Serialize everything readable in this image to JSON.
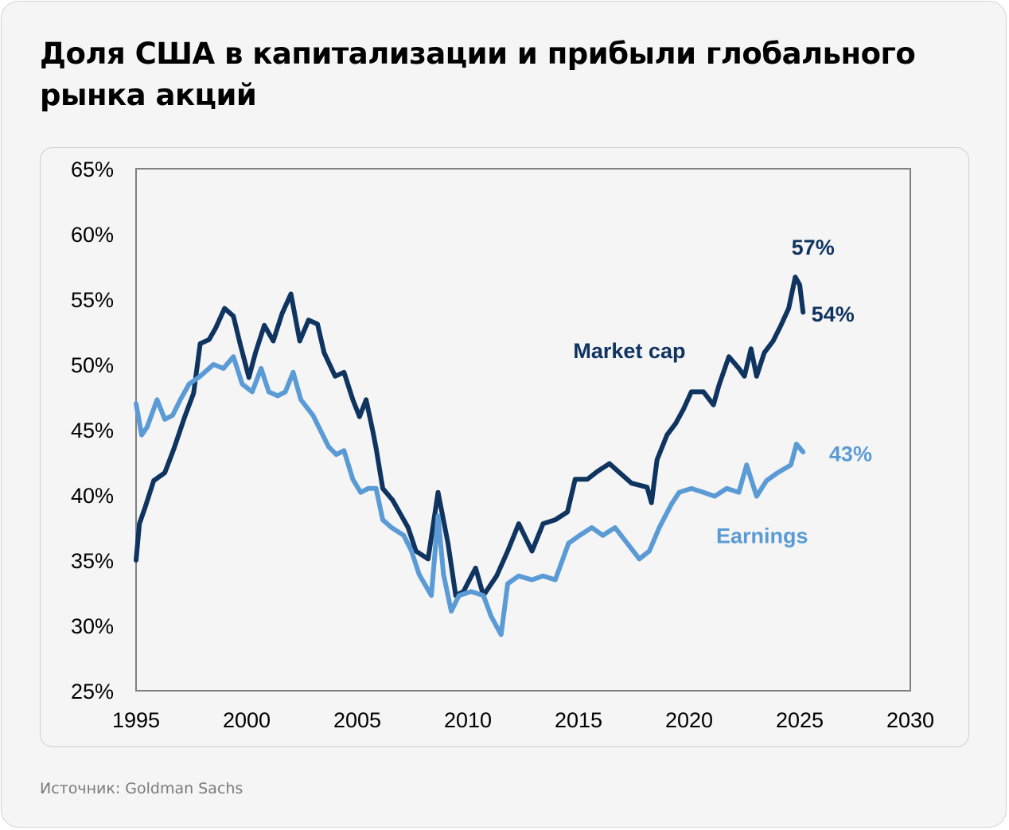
{
  "header": {
    "title": "Доля США в капитализации и прибыли глобального рынка акций"
  },
  "footer": {
    "source": "Источник: Goldman Sachs"
  },
  "colors": {
    "market_cap": "#0f3460",
    "earnings": "#5b9bd5",
    "axis": "#808080",
    "background": "#f5f5f5"
  },
  "chart_data": {
    "type": "line",
    "title": "Доля США в капитализации и прибыли глобального рынка акций",
    "xlabel": "",
    "ylabel": "",
    "xlim": [
      1995,
      2030
    ],
    "ylim": [
      25,
      65
    ],
    "x_ticks": [
      1995,
      2000,
      2005,
      2010,
      2015,
      2020,
      2025,
      2030
    ],
    "x_tick_labels": [
      "1995",
      "2000",
      "2005",
      "2010",
      "2015",
      "2020",
      "2025",
      "2030"
    ],
    "y_ticks": [
      25,
      30,
      35,
      40,
      45,
      50,
      55,
      60,
      65
    ],
    "y_tick_labels": [
      "25%",
      "30%",
      "35%",
      "40%",
      "45%",
      "50%",
      "55%",
      "60%",
      "65%"
    ],
    "grid": false,
    "legend": "inline labels",
    "series": [
      {
        "name": "Market cap",
        "label": "Market cap",
        "color": "#0f3460",
        "points": [
          [
            1995.0,
            35.0
          ],
          [
            1995.15,
            37.8
          ],
          [
            1995.4,
            39.0
          ],
          [
            1995.8,
            41.1
          ],
          [
            1996.3,
            41.7
          ],
          [
            1996.7,
            43.5
          ],
          [
            1997.2,
            46.0
          ],
          [
            1997.6,
            47.8
          ],
          [
            1997.9,
            51.6
          ],
          [
            1998.3,
            51.9
          ],
          [
            1998.6,
            52.8
          ],
          [
            1999.0,
            54.3
          ],
          [
            1999.4,
            53.7
          ],
          [
            1999.7,
            51.6
          ],
          [
            2000.1,
            49.0
          ],
          [
            2000.4,
            50.9
          ],
          [
            2000.8,
            53.0
          ],
          [
            2001.2,
            51.8
          ],
          [
            2001.6,
            53.9
          ],
          [
            2002.0,
            55.4
          ],
          [
            2002.4,
            51.8
          ],
          [
            2002.8,
            53.4
          ],
          [
            2003.2,
            53.1
          ],
          [
            2003.5,
            50.9
          ],
          [
            2004.0,
            49.1
          ],
          [
            2004.4,
            49.4
          ],
          [
            2004.8,
            47.3
          ],
          [
            2005.1,
            46.0
          ],
          [
            2005.4,
            47.3
          ],
          [
            2005.7,
            44.9
          ],
          [
            2005.85,
            43.6
          ],
          [
            2006.15,
            40.5
          ],
          [
            2006.6,
            39.6
          ],
          [
            2006.9,
            38.7
          ],
          [
            2007.3,
            37.5
          ],
          [
            2007.65,
            35.7
          ],
          [
            2008.2,
            35.1
          ],
          [
            2008.65,
            40.2
          ],
          [
            2009.1,
            36.3
          ],
          [
            2009.45,
            32.3
          ],
          [
            2009.8,
            32.6
          ],
          [
            2010.35,
            34.4
          ],
          [
            2010.7,
            32.3
          ],
          [
            2011.3,
            33.8
          ],
          [
            2011.8,
            35.7
          ],
          [
            2012.3,
            37.8
          ],
          [
            2012.9,
            35.7
          ],
          [
            2013.4,
            37.8
          ],
          [
            2013.95,
            38.1
          ],
          [
            2014.5,
            38.7
          ],
          [
            2014.85,
            41.2
          ],
          [
            2015.4,
            41.2
          ],
          [
            2015.85,
            41.8
          ],
          [
            2016.4,
            42.4
          ],
          [
            2016.8,
            41.8
          ],
          [
            2017.4,
            40.9
          ],
          [
            2018.1,
            40.6
          ],
          [
            2018.3,
            39.4
          ],
          [
            2018.55,
            42.7
          ],
          [
            2019.0,
            44.6
          ],
          [
            2019.4,
            45.5
          ],
          [
            2019.75,
            46.6
          ],
          [
            2020.1,
            47.9
          ],
          [
            2020.65,
            47.9
          ],
          [
            2021.1,
            46.9
          ],
          [
            2021.35,
            48.4
          ],
          [
            2021.8,
            50.6
          ],
          [
            2022.25,
            49.7
          ],
          [
            2022.5,
            49.1
          ],
          [
            2022.8,
            51.2
          ],
          [
            2023.05,
            49.1
          ],
          [
            2023.4,
            50.9
          ],
          [
            2023.8,
            51.8
          ],
          [
            2024.15,
            53.0
          ],
          [
            2024.5,
            54.3
          ],
          [
            2024.8,
            56.7
          ],
          [
            2025.0,
            56.1
          ],
          [
            2025.15,
            54.0
          ]
        ],
        "end_labels": [
          {
            "text": "57%",
            "value": 57
          },
          {
            "text": "54%",
            "value": 54
          }
        ]
      },
      {
        "name": "Earnings",
        "label": "Earnings",
        "color": "#5b9bd5",
        "points": [
          [
            1995.0,
            47.0
          ],
          [
            1995.25,
            44.6
          ],
          [
            1995.5,
            45.2
          ],
          [
            1995.95,
            47.3
          ],
          [
            1996.3,
            45.8
          ],
          [
            1996.65,
            46.1
          ],
          [
            1997.0,
            47.3
          ],
          [
            1997.4,
            48.5
          ],
          [
            1997.9,
            49.1
          ],
          [
            1998.5,
            50.0
          ],
          [
            1998.95,
            49.7
          ],
          [
            1999.4,
            50.6
          ],
          [
            1999.8,
            48.5
          ],
          [
            2000.25,
            47.9
          ],
          [
            2000.65,
            49.7
          ],
          [
            2001.0,
            47.9
          ],
          [
            2001.4,
            47.6
          ],
          [
            2001.75,
            47.9
          ],
          [
            2002.1,
            49.4
          ],
          [
            2002.45,
            47.3
          ],
          [
            2003.0,
            46.1
          ],
          [
            2003.35,
            44.9
          ],
          [
            2003.7,
            43.7
          ],
          [
            2004.05,
            43.1
          ],
          [
            2004.4,
            43.4
          ],
          [
            2004.8,
            41.2
          ],
          [
            2005.15,
            40.2
          ],
          [
            2005.5,
            40.5
          ],
          [
            2005.85,
            40.5
          ],
          [
            2006.15,
            38.1
          ],
          [
            2006.55,
            37.5
          ],
          [
            2007.1,
            36.9
          ],
          [
            2007.45,
            35.7
          ],
          [
            2007.8,
            33.9
          ],
          [
            2008.35,
            32.3
          ],
          [
            2008.65,
            38.4
          ],
          [
            2008.9,
            33.9
          ],
          [
            2009.25,
            31.1
          ],
          [
            2009.6,
            32.3
          ],
          [
            2010.15,
            32.6
          ],
          [
            2010.7,
            32.3
          ],
          [
            2011.05,
            30.7
          ],
          [
            2011.5,
            29.3
          ],
          [
            2011.8,
            33.2
          ],
          [
            2012.3,
            33.8
          ],
          [
            2012.9,
            33.5
          ],
          [
            2013.4,
            33.8
          ],
          [
            2013.95,
            33.5
          ],
          [
            2014.55,
            36.3
          ],
          [
            2015.05,
            36.9
          ],
          [
            2015.6,
            37.5
          ],
          [
            2016.1,
            36.9
          ],
          [
            2016.65,
            37.5
          ],
          [
            2017.2,
            36.3
          ],
          [
            2017.75,
            35.1
          ],
          [
            2018.2,
            35.7
          ],
          [
            2018.65,
            37.5
          ],
          [
            2019.2,
            39.3
          ],
          [
            2019.55,
            40.2
          ],
          [
            2020.1,
            40.5
          ],
          [
            2020.65,
            40.2
          ],
          [
            2021.15,
            39.9
          ],
          [
            2021.7,
            40.5
          ],
          [
            2022.25,
            40.2
          ],
          [
            2022.6,
            42.3
          ],
          [
            2023.05,
            39.9
          ],
          [
            2023.5,
            41.1
          ],
          [
            2024.0,
            41.7
          ],
          [
            2024.6,
            42.3
          ],
          [
            2024.85,
            43.9
          ],
          [
            2025.15,
            43.3
          ]
        ],
        "end_labels": [
          {
            "text": "43%",
            "value": 43
          }
        ]
      }
    ],
    "annotations": [
      {
        "text": "Market cap",
        "series": "Market cap"
      },
      {
        "text": "Earnings",
        "series": "Earnings"
      }
    ]
  }
}
